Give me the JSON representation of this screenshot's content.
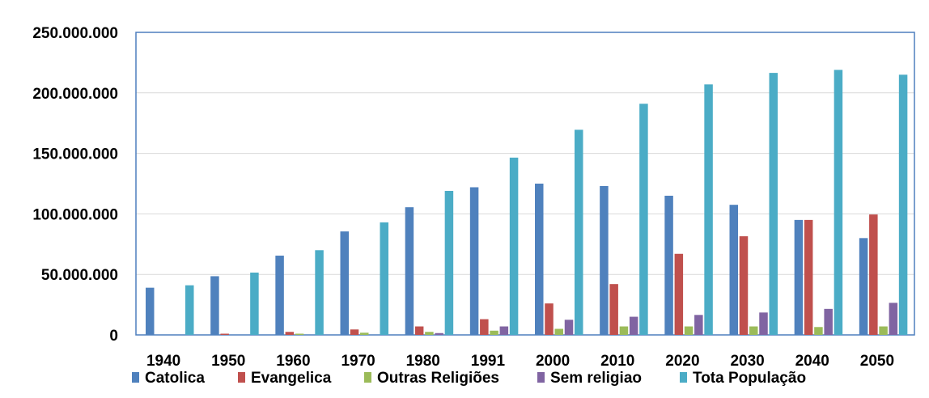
{
  "chart_data": {
    "type": "bar",
    "title": "",
    "xlabel": "",
    "ylabel": "",
    "ylim": [
      0,
      250000000
    ],
    "grid": true,
    "legend_position": "bottom",
    "y_ticks": [
      {
        "value": 0,
        "label": "0"
      },
      {
        "value": 50000000,
        "label": "50.000.000"
      },
      {
        "value": 100000000,
        "label": "100.000.000"
      },
      {
        "value": 150000000,
        "label": "150.000.000"
      },
      {
        "value": 200000000,
        "label": "200.000.000"
      },
      {
        "value": 250000000,
        "label": "250.000.000"
      }
    ],
    "categories": [
      "1940",
      "1950",
      "1960",
      "1970",
      "1980",
      "1991",
      "2000",
      "2010",
      "2020",
      "2030",
      "2040",
      "2050"
    ],
    "series": [
      {
        "name": "Catolica",
        "color": "#4F81BD",
        "values": [
          39000000,
          48500000,
          65500000,
          85500000,
          105500000,
          122000000,
          125000000,
          123000000,
          115000000,
          107500000,
          95000000,
          80000000
        ]
      },
      {
        "name": "Evangelica",
        "color": "#C0504D",
        "values": [
          0,
          1000000,
          2500000,
          4500000,
          7000000,
          13000000,
          26000000,
          42000000,
          67000000,
          81500000,
          95000000,
          99500000
        ]
      },
      {
        "name": "Outras Religiões",
        "color": "#9BBB59",
        "values": [
          0,
          0,
          1000000,
          1800000,
          2500000,
          3500000,
          5000000,
          7000000,
          7000000,
          7000000,
          6500000,
          7000000
        ]
      },
      {
        "name": "Sem religiao",
        "color": "#8064A2",
        "values": [
          0,
          0,
          0,
          0,
          1500000,
          7000000,
          12500000,
          15000000,
          16500000,
          18500000,
          21500000,
          26500000
        ]
      },
      {
        "name": "Tota População",
        "color": "#4BACC6",
        "values": [
          41000000,
          51500000,
          70000000,
          93000000,
          119000000,
          146500000,
          169500000,
          191000000,
          207000000,
          216500000,
          219000000,
          215000000
        ]
      }
    ]
  }
}
